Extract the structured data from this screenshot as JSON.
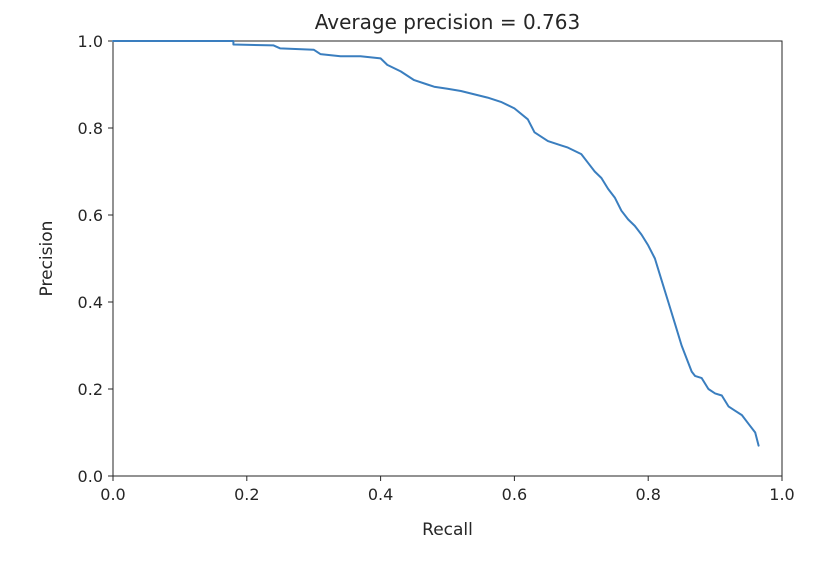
{
  "chart_data": {
    "type": "line",
    "title": "Average precision = 0.763",
    "xlabel": "Recall",
    "ylabel": "Precision",
    "xlim": [
      0.0,
      1.0
    ],
    "ylim": [
      0.0,
      1.0
    ],
    "x_ticks": [
      "0.0",
      "0.2",
      "0.4",
      "0.6",
      "0.8",
      "1.0"
    ],
    "y_ticks": [
      "0.0",
      "0.2",
      "0.4",
      "0.6",
      "0.8",
      "1.0"
    ],
    "grid": false,
    "legend": "none",
    "line_color": "#3a7ebf",
    "series": [
      {
        "x": [
          0.0,
          0.18,
          0.18,
          0.24,
          0.25,
          0.3,
          0.31,
          0.34,
          0.37,
          0.4,
          0.41,
          0.43,
          0.45,
          0.47,
          0.48,
          0.5,
          0.52,
          0.56,
          0.58,
          0.6,
          0.62,
          0.63,
          0.65,
          0.67,
          0.68,
          0.7,
          0.71,
          0.72,
          0.73,
          0.74,
          0.75,
          0.76,
          0.77,
          0.78,
          0.79,
          0.8,
          0.81,
          0.82,
          0.83,
          0.84,
          0.85,
          0.86,
          0.865,
          0.87,
          0.88,
          0.89,
          0.9,
          0.91,
          0.92,
          0.93,
          0.94,
          0.95,
          0.96,
          0.965
        ],
        "y": [
          1.0,
          1.0,
          0.992,
          0.99,
          0.983,
          0.98,
          0.97,
          0.965,
          0.965,
          0.96,
          0.945,
          0.93,
          0.91,
          0.9,
          0.895,
          0.89,
          0.885,
          0.87,
          0.86,
          0.845,
          0.82,
          0.79,
          0.77,
          0.76,
          0.755,
          0.74,
          0.72,
          0.7,
          0.685,
          0.66,
          0.64,
          0.61,
          0.59,
          0.575,
          0.555,
          0.53,
          0.5,
          0.45,
          0.4,
          0.35,
          0.3,
          0.26,
          0.24,
          0.23,
          0.225,
          0.2,
          0.19,
          0.185,
          0.16,
          0.15,
          0.14,
          0.12,
          0.1,
          0.07
        ]
      }
    ]
  }
}
